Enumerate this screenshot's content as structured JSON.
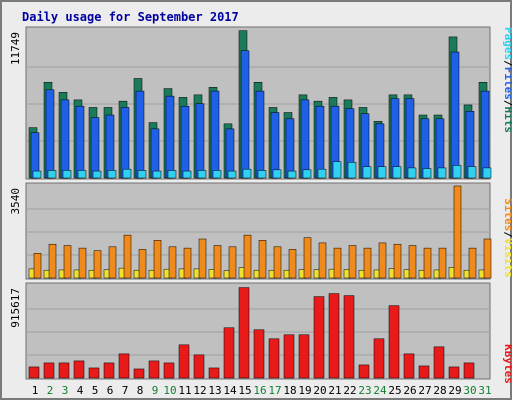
{
  "chart_data": {
    "type": "bar",
    "title": "Daily usage for September 2017",
    "days": [
      "1",
      "2",
      "3",
      "4",
      "5",
      "6",
      "7",
      "8",
      "9",
      "10",
      "11",
      "12",
      "13",
      "14",
      "15",
      "16",
      "17",
      "18",
      "19",
      "20",
      "21",
      "22",
      "23",
      "24",
      "25",
      "26",
      "27",
      "28",
      "29",
      "30",
      "31"
    ],
    "weekend_days": [
      "2",
      "3",
      "9",
      "10",
      "16",
      "17",
      "23",
      "24",
      "30",
      "31"
    ],
    "panels": [
      {
        "name": "traffic",
        "max_label": "11749",
        "ymax": 11749,
        "series": [
          {
            "name": "Hits",
            "color": "#1a7a5a",
            "values": [
              4000,
              7600,
              6800,
              6200,
              5600,
              5600,
              6100,
              7900,
              4400,
              7100,
              6400,
              6600,
              7200,
              4300,
              11700,
              7600,
              5600,
              5200,
              6600,
              6100,
              6400,
              6200,
              5600,
              4500,
              6600,
              6600,
              5000,
              5000,
              11200,
              5800,
              7600
            ]
          },
          {
            "name": "Files",
            "color": "#2060e8",
            "values": [
              3600,
              7000,
              6200,
              5700,
              4800,
              5000,
              5600,
              6900,
              3900,
              6500,
              5700,
              5900,
              6900,
              3900,
              10100,
              6900,
              5200,
              4700,
              6200,
              5700,
              5700,
              5500,
              5100,
              4300,
              6300,
              6300,
              4700,
              4700,
              10000,
              5300,
              6900
            ]
          },
          {
            "name": "Pages",
            "color": "#30d0f0",
            "values": [
              550,
              600,
              600,
              600,
              550,
              600,
              700,
              600,
              550,
              600,
              550,
              600,
              600,
              550,
              700,
              600,
              650,
              550,
              650,
              700,
              1300,
              1250,
              900,
              900,
              900,
              800,
              750,
              800,
              1000,
              900,
              800
            ]
          }
        ]
      },
      {
        "name": "visits",
        "max_label": "3540",
        "ymax": 3540,
        "series": [
          {
            "name": "Visits",
            "color": "#f0e030",
            "values": [
              350,
              300,
              310,
              310,
              300,
              320,
              380,
              300,
              300,
              340,
              350,
              350,
              330,
              280,
              400,
              300,
              300,
              300,
              320,
              320,
              340,
              330,
              300,
              310,
              360,
              320,
              300,
              310,
              410,
              300,
              310
            ]
          },
          {
            "name": "Sites",
            "color": "#f08a1a",
            "values": [
              950,
              1300,
              1250,
              1150,
              1050,
              1200,
              1650,
              1100,
              1450,
              1200,
              1150,
              1500,
              1250,
              1200,
              1650,
              1450,
              1200,
              1100,
              1550,
              1350,
              1150,
              1250,
              1150,
              1350,
              1300,
              1250,
              1150,
              1150,
              3540,
              1150,
              1500
            ]
          }
        ]
      },
      {
        "name": "volume",
        "max_label": "915617",
        "ymax": 915617,
        "series": [
          {
            "name": "KBytes",
            "color": "#e81a1a",
            "values": [
              110000,
              150000,
              150000,
              170000,
              100000,
              150000,
              240000,
              90000,
              170000,
              150000,
              330000,
              230000,
              100000,
              500000,
              900000,
              480000,
              390000,
              430000,
              430000,
              810000,
              840000,
              820000,
              130000,
              390000,
              720000,
              240000,
              120000,
              310000,
              110000,
              150000,
              0
            ]
          }
        ]
      }
    ],
    "legend_right": {
      "top": [
        "Pages",
        "/",
        "Files",
        "/",
        "Hits"
      ],
      "middle": [
        "Sites",
        "/",
        "Visits"
      ],
      "bottom": [
        "KBytes"
      ]
    },
    "colors": {
      "frame": "#ececec",
      "panel": "#c0c0c0",
      "grid": "#a0a0a0",
      "title": "#0000a0",
      "weekday": "#000000",
      "weekend": "#108030"
    }
  }
}
